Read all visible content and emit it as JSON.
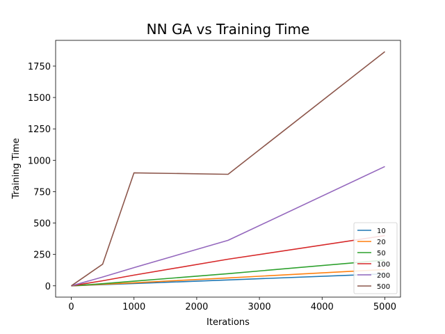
{
  "chart_data": {
    "type": "line",
    "title": "NN GA vs Training Time",
    "xlabel": "Iterations",
    "ylabel": "Training Time",
    "xlim": [
      -250,
      5250
    ],
    "ylim": [
      -90,
      1955
    ],
    "xticks": [
      0,
      1000,
      2000,
      3000,
      4000,
      5000
    ],
    "yticks": [
      0,
      250,
      500,
      750,
      1000,
      1250,
      1500,
      1750
    ],
    "grid": false,
    "legend_position": "lower-right",
    "series": [
      {
        "name": "10",
        "color": "#1f77b4",
        "x": [
          0,
          500,
          1000,
          2500,
          5000
        ],
        "y": [
          0,
          9,
          18,
          47,
          95
        ]
      },
      {
        "name": "20",
        "color": "#ff7f0e",
        "x": [
          0,
          500,
          1000,
          2500,
          5000
        ],
        "y": [
          0,
          12,
          24,
          63,
          130
        ]
      },
      {
        "name": "50",
        "color": "#2ca02c",
        "x": [
          0,
          500,
          1000,
          2500,
          5000
        ],
        "y": [
          0,
          17,
          37,
          97,
          205
        ]
      },
      {
        "name": "100",
        "color": "#d62728",
        "x": [
          0,
          500,
          1000,
          2500,
          5000
        ],
        "y": [
          0,
          40,
          85,
          212,
          400
        ]
      },
      {
        "name": "200",
        "color": "#9467bd",
        "x": [
          0,
          500,
          1000,
          2500,
          5000
        ],
        "y": [
          0,
          70,
          145,
          362,
          950
        ]
      },
      {
        "name": "500",
        "color": "#8c564b",
        "x": [
          0,
          500,
          1000,
          2500,
          5000
        ],
        "y": [
          0,
          172,
          900,
          888,
          1865
        ]
      }
    ]
  }
}
